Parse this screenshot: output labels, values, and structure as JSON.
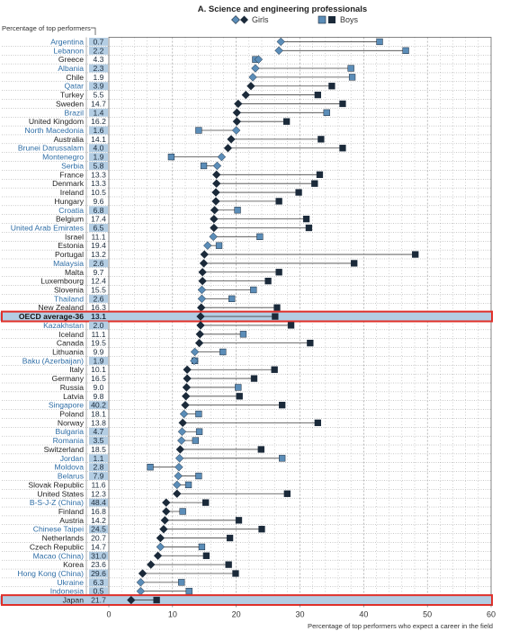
{
  "chart_data": {
    "type": "scatter",
    "title": "A. Science and engineering professionals",
    "column_header": "Percentage of top performers",
    "xlabel": "Percentage of top performers who expect a career in the field",
    "xlim": [
      0,
      60
    ],
    "xticks": [
      0,
      10,
      20,
      30,
      40,
      50,
      60
    ],
    "grid": true,
    "legend_position": "top-center",
    "series": [
      {
        "name": "Girls",
        "marker": "diamond",
        "color": "#5b8db8"
      },
      {
        "name": "Boys",
        "marker": "square",
        "color": "#5b8db8"
      }
    ],
    "highlight_color": "#e0302a",
    "dark_color": "#1b2a3a",
    "mid_color": "#5b8db8",
    "label_bg_color": "#b3cde3",
    "rows": [
      {
        "country": "Argentina",
        "pct": "0.7",
        "girls": 27.0,
        "boys": 42.5,
        "label_color": "#2f6ea6",
        "shaded": true,
        "girls_dark": false,
        "boys_dark": false,
        "highlight": false
      },
      {
        "country": "Lebanon",
        "pct": "2.2",
        "girls": 26.7,
        "boys": 46.6,
        "label_color": "#2f6ea6",
        "shaded": true,
        "girls_dark": false,
        "boys_dark": false,
        "highlight": false
      },
      {
        "country": "Greece",
        "pct": "4.3",
        "girls": 23.5,
        "boys": 23.0,
        "label_color": "#222222",
        "shaded": false,
        "girls_dark": false,
        "boys_dark": false,
        "highlight": false
      },
      {
        "country": "Albania",
        "pct": "2.3",
        "girls": 23.0,
        "boys": 38.0,
        "label_color": "#2f6ea6",
        "shaded": true,
        "girls_dark": false,
        "boys_dark": false,
        "highlight": false
      },
      {
        "country": "Chile",
        "pct": "1.9",
        "girls": 22.6,
        "boys": 38.2,
        "label_color": "#222222",
        "shaded": false,
        "girls_dark": false,
        "boys_dark": false,
        "highlight": false
      },
      {
        "country": "Qatar",
        "pct": "3.9",
        "girls": 22.3,
        "boys": 35.0,
        "label_color": "#2f6ea6",
        "shaded": true,
        "girls_dark": true,
        "boys_dark": true,
        "highlight": false
      },
      {
        "country": "Turkey",
        "pct": "5.5",
        "girls": 21.5,
        "boys": 32.8,
        "label_color": "#222222",
        "shaded": false,
        "girls_dark": true,
        "boys_dark": true,
        "highlight": false
      },
      {
        "country": "Sweden",
        "pct": "14.7",
        "girls": 20.3,
        "boys": 36.7,
        "label_color": "#222222",
        "shaded": false,
        "girls_dark": true,
        "boys_dark": true,
        "highlight": false
      },
      {
        "country": "Brazil",
        "pct": "1.4",
        "girls": 20.1,
        "boys": 34.2,
        "label_color": "#2f6ea6",
        "shaded": true,
        "girls_dark": true,
        "boys_dark": false,
        "highlight": false
      },
      {
        "country": "United Kingdom",
        "pct": "16.2",
        "girls": 20.1,
        "boys": 27.9,
        "label_color": "#222222",
        "shaded": false,
        "girls_dark": true,
        "boys_dark": true,
        "highlight": false
      },
      {
        "country": "North Macedonia",
        "pct": "1.6",
        "girls": 20.0,
        "boys": 14.1,
        "label_color": "#2f6ea6",
        "shaded": true,
        "girls_dark": false,
        "boys_dark": false,
        "highlight": false
      },
      {
        "country": "Australia",
        "pct": "14.1",
        "girls": 19.2,
        "boys": 33.3,
        "label_color": "#222222",
        "shaded": false,
        "girls_dark": true,
        "boys_dark": true,
        "highlight": false
      },
      {
        "country": "Brunei Darussalam",
        "pct": "4.0",
        "girls": 18.7,
        "boys": 36.7,
        "label_color": "#2f6ea6",
        "shaded": true,
        "girls_dark": true,
        "boys_dark": true,
        "highlight": false
      },
      {
        "country": "Montenegro",
        "pct": "1.9",
        "girls": 17.7,
        "boys": 9.8,
        "label_color": "#2f6ea6",
        "shaded": true,
        "girls_dark": false,
        "boys_dark": false,
        "highlight": false
      },
      {
        "country": "Serbia",
        "pct": "5.8",
        "girls": 17.0,
        "boys": 14.9,
        "label_color": "#2f6ea6",
        "shaded": true,
        "girls_dark": false,
        "boys_dark": false,
        "highlight": false
      },
      {
        "country": "France",
        "pct": "13.3",
        "girls": 16.9,
        "boys": 33.1,
        "label_color": "#222222",
        "shaded": false,
        "girls_dark": true,
        "boys_dark": true,
        "highlight": false
      },
      {
        "country": "Denmark",
        "pct": "13.3",
        "girls": 16.9,
        "boys": 32.3,
        "label_color": "#222222",
        "shaded": false,
        "girls_dark": true,
        "boys_dark": true,
        "highlight": false
      },
      {
        "country": "Ireland",
        "pct": "10.5",
        "girls": 16.8,
        "boys": 29.8,
        "label_color": "#222222",
        "shaded": false,
        "girls_dark": true,
        "boys_dark": true,
        "highlight": false
      },
      {
        "country": "Hungary",
        "pct": "9.6",
        "girls": 16.8,
        "boys": 26.7,
        "label_color": "#222222",
        "shaded": false,
        "girls_dark": true,
        "boys_dark": true,
        "highlight": false
      },
      {
        "country": "Croatia",
        "pct": "6.8",
        "girls": 16.6,
        "boys": 20.2,
        "label_color": "#2f6ea6",
        "shaded": true,
        "girls_dark": true,
        "boys_dark": false,
        "highlight": false
      },
      {
        "country": "Belgium",
        "pct": "17.4",
        "girls": 16.5,
        "boys": 31.0,
        "label_color": "#222222",
        "shaded": false,
        "girls_dark": true,
        "boys_dark": true,
        "highlight": false
      },
      {
        "country": "United Arab Emirates",
        "pct": "6.5",
        "girls": 16.5,
        "boys": 31.4,
        "label_color": "#2f6ea6",
        "shaded": true,
        "girls_dark": true,
        "boys_dark": true,
        "highlight": false
      },
      {
        "country": "Israel",
        "pct": "11.1",
        "girls": 16.4,
        "boys": 23.7,
        "label_color": "#222222",
        "shaded": false,
        "girls_dark": false,
        "boys_dark": false,
        "highlight": false
      },
      {
        "country": "Estonia",
        "pct": "19.4",
        "girls": 15.5,
        "boys": 17.3,
        "label_color": "#222222",
        "shaded": false,
        "girls_dark": false,
        "boys_dark": false,
        "highlight": false
      },
      {
        "country": "Portugal",
        "pct": "13.2",
        "girls": 15.0,
        "boys": 48.1,
        "label_color": "#222222",
        "shaded": false,
        "girls_dark": true,
        "boys_dark": true,
        "highlight": false
      },
      {
        "country": "Malaysia",
        "pct": "2.6",
        "girls": 14.9,
        "boys": 38.5,
        "label_color": "#2f6ea6",
        "shaded": true,
        "girls_dark": true,
        "boys_dark": true,
        "highlight": false
      },
      {
        "country": "Malta",
        "pct": "9.7",
        "girls": 14.7,
        "boys": 26.7,
        "label_color": "#222222",
        "shaded": false,
        "girls_dark": true,
        "boys_dark": true,
        "highlight": false
      },
      {
        "country": "Luxembourg",
        "pct": "12.4",
        "girls": 14.7,
        "boys": 25.0,
        "label_color": "#222222",
        "shaded": false,
        "girls_dark": true,
        "boys_dark": true,
        "highlight": false
      },
      {
        "country": "Slovenia",
        "pct": "15.5",
        "girls": 14.6,
        "boys": 22.7,
        "label_color": "#222222",
        "shaded": false,
        "girls_dark": false,
        "boys_dark": false,
        "highlight": false
      },
      {
        "country": "Thailand",
        "pct": "2.6",
        "girls": 14.6,
        "boys": 19.3,
        "label_color": "#2f6ea6",
        "shaded": true,
        "girls_dark": false,
        "boys_dark": false,
        "highlight": false
      },
      {
        "country": "New Zealand",
        "pct": "16.3",
        "girls": 14.5,
        "boys": 26.4,
        "label_color": "#222222",
        "shaded": false,
        "girls_dark": true,
        "boys_dark": true,
        "highlight": false
      },
      {
        "country": "OECD average-36",
        "pct": "13.1",
        "girls": 14.4,
        "boys": 26.1,
        "label_color": "#111111",
        "shaded": true,
        "girls_dark": true,
        "boys_dark": true,
        "highlight": true
      },
      {
        "country": "Kazakhstan",
        "pct": "2.0",
        "girls": 14.4,
        "boys": 28.6,
        "label_color": "#2f6ea6",
        "shaded": true,
        "girls_dark": true,
        "boys_dark": true,
        "highlight": false
      },
      {
        "country": "Iceland",
        "pct": "11.1",
        "girls": 14.3,
        "boys": 21.1,
        "label_color": "#222222",
        "shaded": false,
        "girls_dark": true,
        "boys_dark": false,
        "highlight": false
      },
      {
        "country": "Canada",
        "pct": "19.5",
        "girls": 14.2,
        "boys": 31.6,
        "label_color": "#222222",
        "shaded": false,
        "girls_dark": true,
        "boys_dark": true,
        "highlight": false
      },
      {
        "country": "Lithuania",
        "pct": "9.9",
        "girls": 13.5,
        "boys": 17.9,
        "label_color": "#222222",
        "shaded": false,
        "girls_dark": false,
        "boys_dark": false,
        "highlight": false
      },
      {
        "country": "Baku (Azerbaijan)",
        "pct": "1.9",
        "girls": 13.4,
        "boys": 13.5,
        "label_color": "#2f6ea6",
        "shaded": true,
        "girls_dark": false,
        "boys_dark": false,
        "highlight": false
      },
      {
        "country": "Italy",
        "pct": "10.1",
        "girls": 12.3,
        "boys": 26.0,
        "label_color": "#222222",
        "shaded": false,
        "girls_dark": true,
        "boys_dark": true,
        "highlight": false
      },
      {
        "country": "Germany",
        "pct": "16.5",
        "girls": 12.3,
        "boys": 22.8,
        "label_color": "#222222",
        "shaded": false,
        "girls_dark": true,
        "boys_dark": true,
        "highlight": false
      },
      {
        "country": "Russia",
        "pct": "9.0",
        "girls": 12.2,
        "boys": 20.3,
        "label_color": "#222222",
        "shaded": false,
        "girls_dark": true,
        "boys_dark": false,
        "highlight": false
      },
      {
        "country": "Latvia",
        "pct": "9.8",
        "girls": 12.1,
        "boys": 20.5,
        "label_color": "#222222",
        "shaded": false,
        "girls_dark": true,
        "boys_dark": true,
        "highlight": false
      },
      {
        "country": "Singapore",
        "pct": "40.2",
        "girls": 12.0,
        "boys": 27.2,
        "label_color": "#2f6ea6",
        "shaded": true,
        "girls_dark": true,
        "boys_dark": true,
        "highlight": false
      },
      {
        "country": "Poland",
        "pct": "18.1",
        "girls": 11.8,
        "boys": 14.1,
        "label_color": "#222222",
        "shaded": false,
        "girls_dark": false,
        "boys_dark": false,
        "highlight": false
      },
      {
        "country": "Norway",
        "pct": "13.8",
        "girls": 11.6,
        "boys": 32.8,
        "label_color": "#222222",
        "shaded": false,
        "girls_dark": true,
        "boys_dark": true,
        "highlight": false
      },
      {
        "country": "Bulgaria",
        "pct": "4.7",
        "girls": 11.5,
        "boys": 14.2,
        "label_color": "#2f6ea6",
        "shaded": true,
        "girls_dark": false,
        "boys_dark": false,
        "highlight": false
      },
      {
        "country": "Romania",
        "pct": "3.5",
        "girls": 11.4,
        "boys": 13.6,
        "label_color": "#2f6ea6",
        "shaded": true,
        "girls_dark": false,
        "boys_dark": false,
        "highlight": false
      },
      {
        "country": "Switzerland",
        "pct": "18.5",
        "girls": 11.2,
        "boys": 23.9,
        "label_color": "#222222",
        "shaded": false,
        "girls_dark": true,
        "boys_dark": true,
        "highlight": false
      },
      {
        "country": "Jordan",
        "pct": "1.1",
        "girls": 11.1,
        "boys": 27.2,
        "label_color": "#2f6ea6",
        "shaded": true,
        "girls_dark": false,
        "boys_dark": false,
        "highlight": false
      },
      {
        "country": "Moldova",
        "pct": "2.8",
        "girls": 11.0,
        "boys": 6.5,
        "label_color": "#2f6ea6",
        "shaded": true,
        "girls_dark": false,
        "boys_dark": false,
        "highlight": false
      },
      {
        "country": "Belarus",
        "pct": "7.9",
        "girls": 10.9,
        "boys": 14.1,
        "label_color": "#2f6ea6",
        "shaded": true,
        "girls_dark": false,
        "boys_dark": false,
        "highlight": false
      },
      {
        "country": "Slovak Republic",
        "pct": "11.6",
        "girls": 10.7,
        "boys": 12.5,
        "label_color": "#222222",
        "shaded": false,
        "girls_dark": false,
        "boys_dark": false,
        "highlight": false
      },
      {
        "country": "United States",
        "pct": "12.3",
        "girls": 10.7,
        "boys": 28.0,
        "label_color": "#222222",
        "shaded": false,
        "girls_dark": true,
        "boys_dark": true,
        "highlight": false
      },
      {
        "country": "B-S-J-Z (China)",
        "pct": "48.4",
        "girls": 9.0,
        "boys": 15.2,
        "label_color": "#2f6ea6",
        "shaded": true,
        "girls_dark": true,
        "boys_dark": true,
        "highlight": false
      },
      {
        "country": "Finland",
        "pct": "16.8",
        "girls": 9.0,
        "boys": 11.6,
        "label_color": "#222222",
        "shaded": false,
        "girls_dark": true,
        "boys_dark": false,
        "highlight": false
      },
      {
        "country": "Austria",
        "pct": "14.2",
        "girls": 8.8,
        "boys": 20.4,
        "label_color": "#222222",
        "shaded": false,
        "girls_dark": true,
        "boys_dark": true,
        "highlight": false
      },
      {
        "country": "Chinese Taipei",
        "pct": "24.5",
        "girls": 8.6,
        "boys": 24.0,
        "label_color": "#2f6ea6",
        "shaded": true,
        "girls_dark": true,
        "boys_dark": true,
        "highlight": false
      },
      {
        "country": "Netherlands",
        "pct": "20.7",
        "girls": 8.1,
        "boys": 19.0,
        "label_color": "#222222",
        "shaded": false,
        "girls_dark": true,
        "boys_dark": true,
        "highlight": false
      },
      {
        "country": "Czech Republic",
        "pct": "14.7",
        "girls": 8.1,
        "boys": 14.6,
        "label_color": "#222222",
        "shaded": false,
        "girls_dark": false,
        "boys_dark": false,
        "highlight": false
      },
      {
        "country": "Macao (China)",
        "pct": "31.0",
        "girls": 7.7,
        "boys": 15.3,
        "label_color": "#2f6ea6",
        "shaded": true,
        "girls_dark": true,
        "boys_dark": true,
        "highlight": false
      },
      {
        "country": "Korea",
        "pct": "23.6",
        "girls": 6.6,
        "boys": 18.8,
        "label_color": "#222222",
        "shaded": false,
        "girls_dark": true,
        "boys_dark": true,
        "highlight": false
      },
      {
        "country": "Hong Kong (China)",
        "pct": "29.6",
        "girls": 5.3,
        "boys": 19.9,
        "label_color": "#2f6ea6",
        "shaded": true,
        "girls_dark": true,
        "boys_dark": true,
        "highlight": false
      },
      {
        "country": "Ukraine",
        "pct": "6.3",
        "girls": 5.0,
        "boys": 11.4,
        "label_color": "#2f6ea6",
        "shaded": true,
        "girls_dark": false,
        "boys_dark": false,
        "highlight": false
      },
      {
        "country": "Indonesia",
        "pct": "0.5",
        "girls": 5.0,
        "boys": 12.6,
        "label_color": "#2f6ea6",
        "shaded": true,
        "girls_dark": false,
        "boys_dark": false,
        "highlight": false
      },
      {
        "country": "Japan",
        "pct": "21.7",
        "girls": 3.5,
        "boys": 7.5,
        "label_color": "#222222",
        "shaded": false,
        "girls_dark": true,
        "boys_dark": true,
        "highlight": true
      }
    ]
  }
}
